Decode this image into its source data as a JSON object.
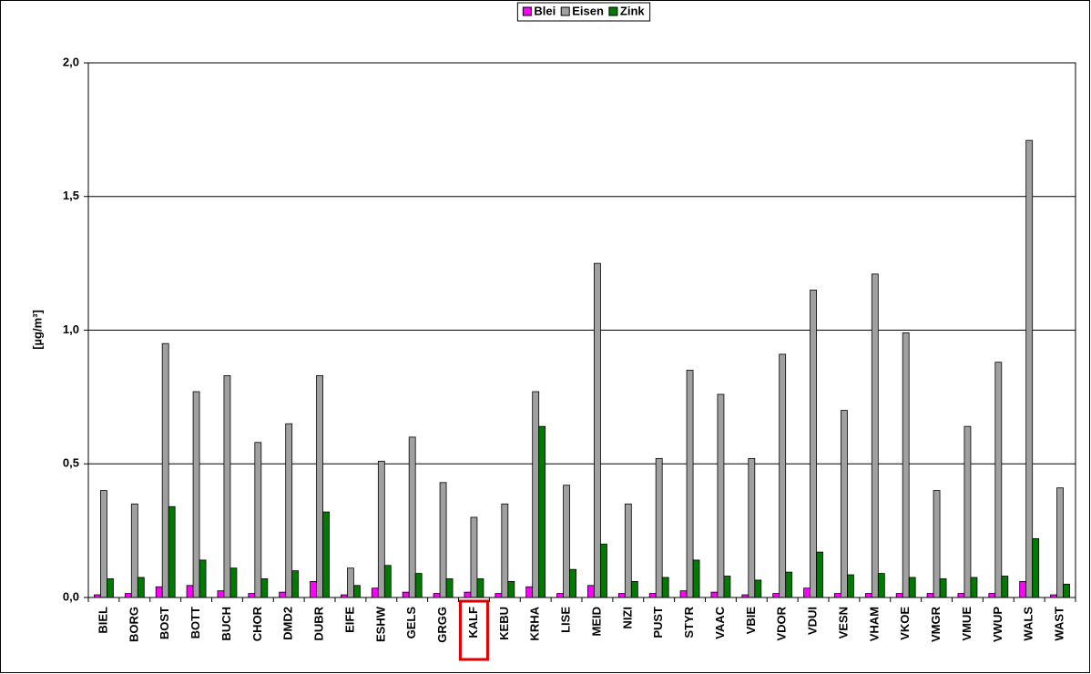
{
  "chart_data": {
    "type": "bar",
    "y_label": "[µg/m³]",
    "categories": [
      "BIEL",
      "BORG",
      "BOST",
      "BOTT",
      "BUCH",
      "CHOR",
      "DMD2",
      "DUBR",
      "EIFE",
      "ESHW",
      "GELS",
      "GRGG",
      "KALF",
      "KEBU",
      "KRHA",
      "LISE",
      "MEID",
      "NIZI",
      "PUST",
      "STYR",
      "VAAC",
      "VBIE",
      "VDOR",
      "VDUI",
      "VESN",
      "VHAM",
      "VKOE",
      "VMGR",
      "VMUE",
      "VWUP",
      "WALS",
      "WAST"
    ],
    "series": [
      {
        "name": "Blei",
        "color": "#ff00ff",
        "values": [
          0.01,
          0.015,
          0.04,
          0.045,
          0.025,
          0.015,
          0.02,
          0.06,
          0.01,
          0.035,
          0.02,
          0.015,
          0.02,
          0.015,
          0.04,
          0.015,
          0.045,
          0.015,
          0.015,
          0.025,
          0.02,
          0.01,
          0.015,
          0.035,
          0.015,
          0.015,
          0.015,
          0.015,
          0.015,
          0.015,
          0.06,
          0.01
        ]
      },
      {
        "name": "Eisen",
        "color": "#a0a0a0",
        "values": [
          0.4,
          0.35,
          0.95,
          0.77,
          0.83,
          0.58,
          0.65,
          0.83,
          0.11,
          0.51,
          0.6,
          0.43,
          0.3,
          0.35,
          0.77,
          0.42,
          1.25,
          0.35,
          0.52,
          0.85,
          0.76,
          0.52,
          0.91,
          1.15,
          0.7,
          1.21,
          0.99,
          0.4,
          0.64,
          0.88,
          1.71,
          0.41
        ]
      },
      {
        "name": "Zink",
        "color": "#007a00",
        "values": [
          0.07,
          0.075,
          0.34,
          0.14,
          0.11,
          0.07,
          0.1,
          0.32,
          0.045,
          0.12,
          0.09,
          0.07,
          0.07,
          0.06,
          0.64,
          0.105,
          0.2,
          0.06,
          0.075,
          0.14,
          0.08,
          0.065,
          0.095,
          0.17,
          0.085,
          0.09,
          0.075,
          0.07,
          0.075,
          0.08,
          0.22,
          0.05
        ]
      }
    ],
    "ylim": [
      0,
      2
    ],
    "yticks": [
      {
        "value": 0,
        "label": "0,0"
      },
      {
        "value": 0.5,
        "label": "0,5"
      },
      {
        "value": 1,
        "label": "1,0"
      },
      {
        "value": 1.5,
        "label": "1,5"
      },
      {
        "value": 2,
        "label": "2,0"
      }
    ],
    "grid": true,
    "legend": "top"
  }
}
